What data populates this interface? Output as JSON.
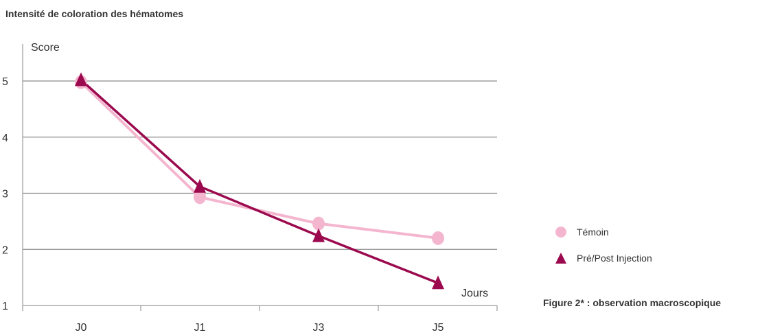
{
  "title": "Intensité de coloration des hématomes",
  "caption": "Figure 2* : observation macroscopique",
  "chart_data": {
    "type": "line",
    "ylabel": "Score",
    "xlabel": "Jours",
    "categories": [
      "J0",
      "J1",
      "J3",
      "J5"
    ],
    "ylim": [
      1,
      5
    ],
    "yticks": [
      1,
      2,
      3,
      4,
      5
    ],
    "grid": true,
    "legend_position": "right",
    "series": [
      {
        "name": "Témoin",
        "values": [
          4.98,
          2.93,
          2.46,
          2.2
        ],
        "color": "#f4b6cf",
        "marker": "circle"
      },
      {
        "name": "Pré/Post Injection",
        "values": [
          5.02,
          3.12,
          2.24,
          1.4
        ],
        "color": "#9b0a4e",
        "marker": "triangle"
      }
    ]
  }
}
